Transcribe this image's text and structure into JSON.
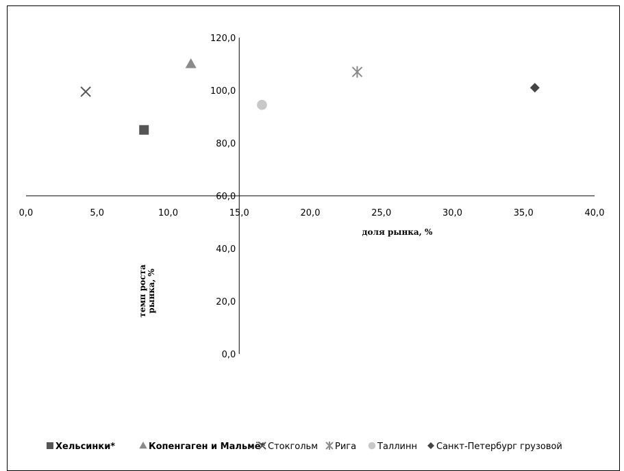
{
  "chart_data": {
    "type": "scatter",
    "title": "",
    "xlabel": "доля рынка, %",
    "ylabel": "темп роста рынка, %",
    "xlim": [
      0,
      40
    ],
    "ylim": [
      0,
      120
    ],
    "x_ticks": [
      "0,0",
      "5,0",
      "10,0",
      "15,0",
      "20,0",
      "25,0",
      "30,0",
      "35,0",
      "40,0"
    ],
    "y_ticks": [
      "0,0",
      "20,0",
      "40,0",
      "60,0",
      "80,0",
      "100,0",
      "120,0"
    ],
    "x_axis_crosses_y": 60,
    "y_axis_crosses_x": 15,
    "grid": false,
    "legend": "bottom",
    "series": [
      {
        "name": "Хельсинки*",
        "marker": "square",
        "color": "#555555",
        "points": [
          [
            8.3,
            85.0
          ]
        ]
      },
      {
        "name": "Копенгаген и Мальмё*",
        "marker": "triangle",
        "color": "#8a8a8a",
        "points": [
          [
            11.6,
            110.0
          ]
        ]
      },
      {
        "name": "Стокгольм",
        "marker": "x",
        "color": "#555555",
        "points": [
          [
            4.2,
            99.5
          ]
        ]
      },
      {
        "name": "Рига",
        "marker": "star",
        "color": "#8a8a8a",
        "points": [
          [
            23.3,
            107.0
          ]
        ]
      },
      {
        "name": "Таллинн",
        "marker": "circle",
        "color": "#c8c8c8",
        "points": [
          [
            16.6,
            94.5
          ]
        ]
      },
      {
        "name": "Санкт-Петербург грузовой",
        "marker": "diamond",
        "color": "#444444",
        "points": [
          [
            35.8,
            101.0
          ]
        ]
      }
    ]
  }
}
